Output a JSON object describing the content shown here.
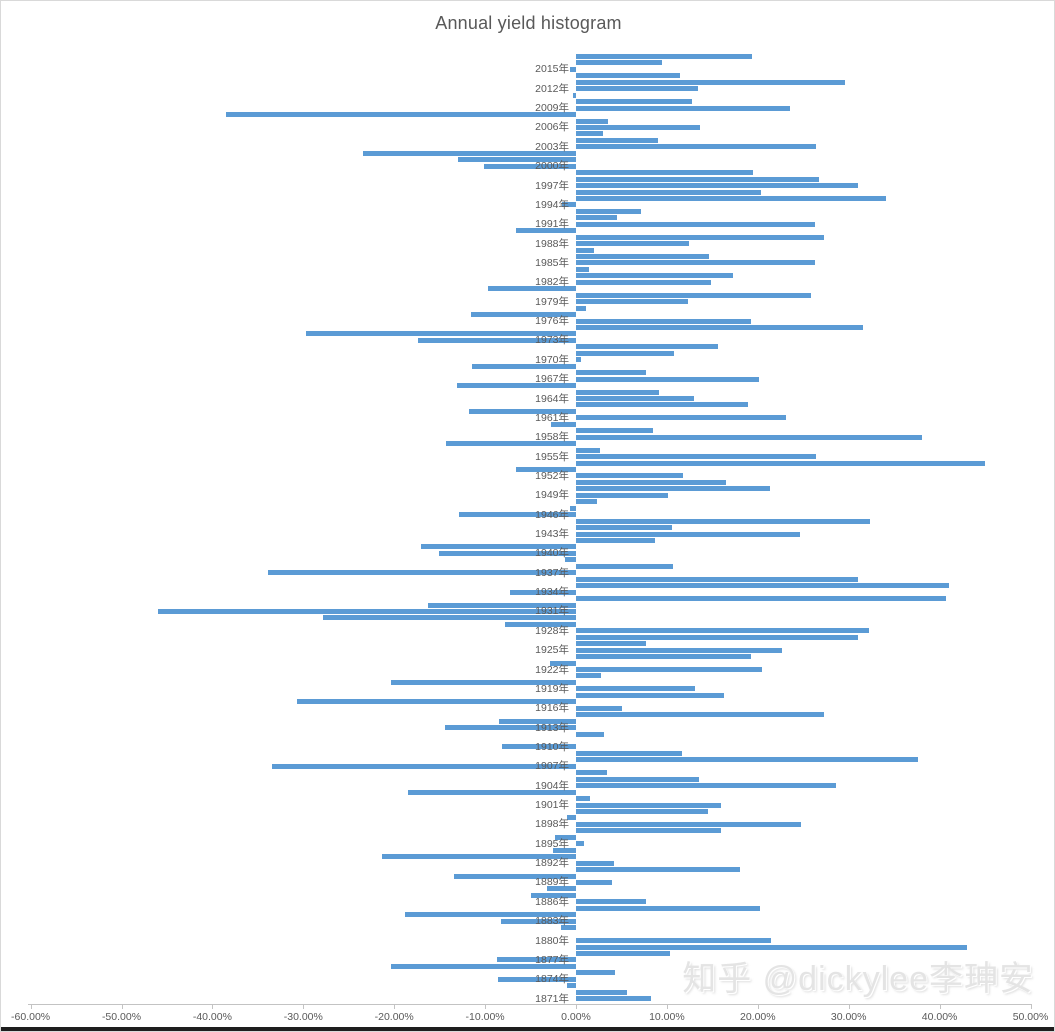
{
  "title": "Annual yield histogram",
  "watermark": "知乎 @dickylee李珅安",
  "colors": {
    "bar": "#5B9BD5",
    "text": "#595959",
    "axis_line": "#C3C3C3",
    "watermark": "#E4E4E4"
  },
  "chart_data": {
    "type": "bar",
    "orientation": "horizontal",
    "title": "Annual yield histogram",
    "unit": "%",
    "category_label_suffix": "年",
    "category_label_interval": 3,
    "first_labeled_year": 2015,
    "xlim": [
      -60,
      50
    ],
    "x_tick_values": [
      -60,
      -50,
      -40,
      -30,
      -20,
      -10,
      0,
      10,
      20,
      30,
      40,
      50
    ],
    "x_tick_labels": [
      "-60.00%",
      "-50.00%",
      "-40.00%",
      "-30.00%",
      "-20.00%",
      "-10.00%",
      "0.00%",
      "10.00%",
      "20.00%",
      "30.00%",
      "40.00%",
      "50.00%"
    ],
    "visible_year_labels": [
      "2015年",
      "2012年",
      "2009年",
      "2006年",
      "2003年",
      "2000年",
      "1997年",
      "1994年",
      "1991年",
      "1988年",
      "1985年",
      "1982年",
      "1979年",
      "1976年",
      "1973年",
      "1970年",
      "1967年",
      "1964年",
      "1961年",
      "1958年",
      "1955年",
      "1952年",
      "1949年",
      "1946年",
      "1943年",
      "1940年",
      "1937年",
      "1934年",
      "1931年",
      "1928年",
      "1925年",
      "1922年",
      "1919年",
      "1916年",
      "1913年",
      "1910年",
      "1907年",
      "1904年",
      "1901年",
      "1898年",
      "1895年",
      "1892年",
      "1889年",
      "1886年",
      "1883年",
      "1880年",
      "1877年",
      "1874年",
      "1871年"
    ],
    "series": [
      {
        "name": "annual yield",
        "year_order": "descending",
        "points": [
          {
            "year": 2017,
            "value": 19.4
          },
          {
            "year": 2016,
            "value": 9.5
          },
          {
            "year": 2015,
            "value": -0.7
          },
          {
            "year": 2014,
            "value": 11.4
          },
          {
            "year": 2013,
            "value": 29.6
          },
          {
            "year": 2012,
            "value": 13.4
          },
          {
            "year": 2011,
            "value": -0.3
          },
          {
            "year": 2010,
            "value": 12.8
          },
          {
            "year": 2009,
            "value": 23.5
          },
          {
            "year": 2008,
            "value": -38.5
          },
          {
            "year": 2007,
            "value": 3.5
          },
          {
            "year": 2006,
            "value": 13.6
          },
          {
            "year": 2005,
            "value": 3.0
          },
          {
            "year": 2004,
            "value": 9.0
          },
          {
            "year": 2003,
            "value": 26.4
          },
          {
            "year": 2002,
            "value": -23.4
          },
          {
            "year": 2001,
            "value": -13.0
          },
          {
            "year": 2000,
            "value": -10.1
          },
          {
            "year": 1999,
            "value": 19.5
          },
          {
            "year": 1998,
            "value": 26.7
          },
          {
            "year": 1997,
            "value": 31.0
          },
          {
            "year": 1996,
            "value": 20.3
          },
          {
            "year": 1995,
            "value": 34.1
          },
          {
            "year": 1994,
            "value": -1.5
          },
          {
            "year": 1993,
            "value": 7.1
          },
          {
            "year": 1992,
            "value": 4.5
          },
          {
            "year": 1991,
            "value": 26.3
          },
          {
            "year": 1990,
            "value": -6.6
          },
          {
            "year": 1989,
            "value": 27.3
          },
          {
            "year": 1988,
            "value": 12.4
          },
          {
            "year": 1987,
            "value": 2.0
          },
          {
            "year": 1986,
            "value": 14.6
          },
          {
            "year": 1985,
            "value": 26.3
          },
          {
            "year": 1984,
            "value": 1.4
          },
          {
            "year": 1983,
            "value": 17.3
          },
          {
            "year": 1982,
            "value": 14.8
          },
          {
            "year": 1981,
            "value": -9.7
          },
          {
            "year": 1980,
            "value": 25.8
          },
          {
            "year": 1979,
            "value": 12.3
          },
          {
            "year": 1978,
            "value": 1.1
          },
          {
            "year": 1977,
            "value": -11.5
          },
          {
            "year": 1976,
            "value": 19.2
          },
          {
            "year": 1975,
            "value": 31.6
          },
          {
            "year": 1974,
            "value": -29.7
          },
          {
            "year": 1973,
            "value": -17.4
          },
          {
            "year": 1972,
            "value": 15.6
          },
          {
            "year": 1971,
            "value": 10.8
          },
          {
            "year": 1970,
            "value": 0.5
          },
          {
            "year": 1969,
            "value": -11.4
          },
          {
            "year": 1968,
            "value": 7.7
          },
          {
            "year": 1967,
            "value": 20.1
          },
          {
            "year": 1966,
            "value": -13.1
          },
          {
            "year": 1965,
            "value": 9.1
          },
          {
            "year": 1964,
            "value": 13.0
          },
          {
            "year": 1963,
            "value": 18.9
          },
          {
            "year": 1962,
            "value": -11.8
          },
          {
            "year": 1961,
            "value": 23.1
          },
          {
            "year": 1960,
            "value": -2.7
          },
          {
            "year": 1959,
            "value": 8.5
          },
          {
            "year": 1958,
            "value": 38.1
          },
          {
            "year": 1957,
            "value": -14.3
          },
          {
            "year": 1956,
            "value": 2.6
          },
          {
            "year": 1955,
            "value": 26.4
          },
          {
            "year": 1954,
            "value": 45.0
          },
          {
            "year": 1953,
            "value": -6.6
          },
          {
            "year": 1952,
            "value": 11.8
          },
          {
            "year": 1951,
            "value": 16.5
          },
          {
            "year": 1950,
            "value": 21.3
          },
          {
            "year": 1949,
            "value": 10.1
          },
          {
            "year": 1948,
            "value": 2.3
          },
          {
            "year": 1947,
            "value": -0.7
          },
          {
            "year": 1946,
            "value": -12.9
          },
          {
            "year": 1945,
            "value": 32.3
          },
          {
            "year": 1944,
            "value": 10.6
          },
          {
            "year": 1943,
            "value": 24.6
          },
          {
            "year": 1942,
            "value": 8.7
          },
          {
            "year": 1941,
            "value": -17.0
          },
          {
            "year": 1940,
            "value": -15.1
          },
          {
            "year": 1939,
            "value": -1.2
          },
          {
            "year": 1938,
            "value": 10.7
          },
          {
            "year": 1937,
            "value": -33.9
          },
          {
            "year": 1936,
            "value": 31.0
          },
          {
            "year": 1935,
            "value": 41.0
          },
          {
            "year": 1934,
            "value": -7.3
          },
          {
            "year": 1933,
            "value": 40.7
          },
          {
            "year": 1932,
            "value": -16.3
          },
          {
            "year": 1931,
            "value": -46.0
          },
          {
            "year": 1930,
            "value": -27.8
          },
          {
            "year": 1929,
            "value": -7.8
          },
          {
            "year": 1928,
            "value": 32.2
          },
          {
            "year": 1927,
            "value": 31.0
          },
          {
            "year": 1926,
            "value": 7.7
          },
          {
            "year": 1925,
            "value": 22.7
          },
          {
            "year": 1924,
            "value": 19.2
          },
          {
            "year": 1923,
            "value": -2.9
          },
          {
            "year": 1922,
            "value": 20.5
          },
          {
            "year": 1921,
            "value": 2.7
          },
          {
            "year": 1920,
            "value": -20.3
          },
          {
            "year": 1919,
            "value": 13.1
          },
          {
            "year": 1918,
            "value": 16.3
          },
          {
            "year": 1917,
            "value": -30.7
          },
          {
            "year": 1916,
            "value": 5.1
          },
          {
            "year": 1915,
            "value": 27.3
          },
          {
            "year": 1914,
            "value": -8.5
          },
          {
            "year": 1913,
            "value": -14.4
          },
          {
            "year": 1912,
            "value": 3.1
          },
          {
            "year": 1911,
            "value": 0.0
          },
          {
            "year": 1910,
            "value": -8.1
          },
          {
            "year": 1909,
            "value": 11.7
          },
          {
            "year": 1908,
            "value": 37.6
          },
          {
            "year": 1907,
            "value": -33.4
          },
          {
            "year": 1906,
            "value": 3.4
          },
          {
            "year": 1905,
            "value": 13.5
          },
          {
            "year": 1904,
            "value": 28.6
          },
          {
            "year": 1903,
            "value": -18.5
          },
          {
            "year": 1902,
            "value": 1.5
          },
          {
            "year": 1901,
            "value": 16.0
          },
          {
            "year": 1900,
            "value": 14.5
          },
          {
            "year": 1899,
            "value": -1.0
          },
          {
            "year": 1898,
            "value": 24.8
          },
          {
            "year": 1897,
            "value": 16.0
          },
          {
            "year": 1896,
            "value": -2.3
          },
          {
            "year": 1895,
            "value": 0.9
          },
          {
            "year": 1894,
            "value": -2.5
          },
          {
            "year": 1893,
            "value": -21.3
          },
          {
            "year": 1892,
            "value": 4.2
          },
          {
            "year": 1891,
            "value": 18.0
          },
          {
            "year": 1890,
            "value": -13.4
          },
          {
            "year": 1889,
            "value": 4.0
          },
          {
            "year": 1888,
            "value": -3.2
          },
          {
            "year": 1887,
            "value": -4.9
          },
          {
            "year": 1886,
            "value": 7.7
          },
          {
            "year": 1885,
            "value": 20.2
          },
          {
            "year": 1884,
            "value": -18.8
          },
          {
            "year": 1883,
            "value": -8.3
          },
          {
            "year": 1882,
            "value": -1.6
          },
          {
            "year": 1881,
            "value": 0.0
          },
          {
            "year": 1880,
            "value": 21.4
          },
          {
            "year": 1879,
            "value": 43.0
          },
          {
            "year": 1878,
            "value": 10.3
          },
          {
            "year": 1877,
            "value": -8.7
          },
          {
            "year": 1876,
            "value": -20.4
          },
          {
            "year": 1875,
            "value": 4.3
          },
          {
            "year": 1874,
            "value": -8.6
          },
          {
            "year": 1873,
            "value": -1.0
          },
          {
            "year": 1872,
            "value": 5.6
          },
          {
            "year": 1871,
            "value": 8.2
          }
        ]
      }
    ]
  }
}
